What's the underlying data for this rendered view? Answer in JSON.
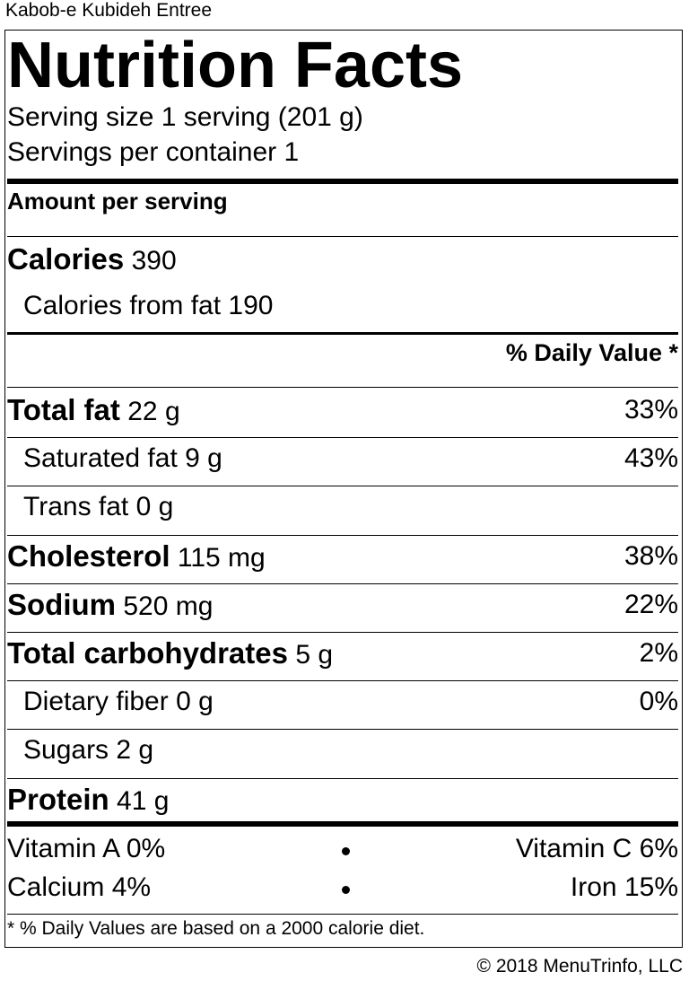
{
  "item_name": "Kabob-e Kubideh Entree",
  "label": {
    "title": "Nutrition Facts",
    "serving_size": "Serving size 1 serving (201 g)",
    "servings_per_container": "Servings per container 1",
    "amount_per_serving": "Amount per serving",
    "calories_label": "Calories",
    "calories_value": "390",
    "calories_from_fat": "Calories from fat 190",
    "daily_value_header": "% Daily Value *",
    "nutrients": [
      {
        "name": "Total fat",
        "amount": "22 g",
        "dv": "33%",
        "bold": true,
        "indent": false
      },
      {
        "name": "Saturated fat",
        "amount": "9 g",
        "dv": "43%",
        "bold": false,
        "indent": true
      },
      {
        "name": "Trans fat",
        "amount": "0 g",
        "dv": "",
        "bold": false,
        "indent": true
      },
      {
        "name": "Cholesterol",
        "amount": "115 mg",
        "dv": "38%",
        "bold": true,
        "indent": false
      },
      {
        "name": "Sodium",
        "amount": "520 mg",
        "dv": "22%",
        "bold": true,
        "indent": false
      },
      {
        "name": "Total carbohydrates",
        "amount": "5 g",
        "dv": "2%",
        "bold": true,
        "indent": false
      },
      {
        "name": "Dietary fiber",
        "amount": "0 g",
        "dv": "0%",
        "bold": false,
        "indent": true
      },
      {
        "name": "Sugars",
        "amount": "2 g",
        "dv": "",
        "bold": false,
        "indent": true
      },
      {
        "name": "Protein",
        "amount": "41 g",
        "dv": "",
        "bold": true,
        "indent": false
      }
    ],
    "vitamins": [
      {
        "left": "Vitamin A 0%",
        "right": "Vitamin C 6%"
      },
      {
        "left": "Calcium 4%",
        "right": "Iron 15%"
      }
    ],
    "footnote": "* % Daily Values are based on a 2000 calorie diet."
  },
  "copyright": "© 2018 MenuTrinfo, LLC"
}
